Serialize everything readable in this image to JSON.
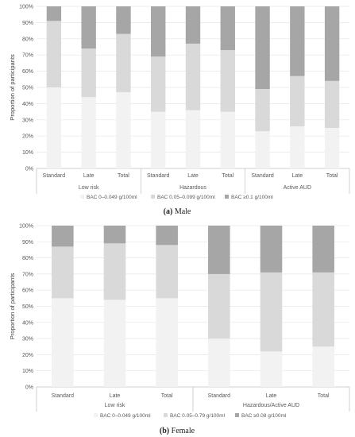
{
  "chart_data": [
    {
      "type": "bar",
      "stacked": true,
      "caption_letter": "(a)",
      "caption_text": "Male",
      "ylabel": "Proportion of participants",
      "ylim": [
        0,
        100
      ],
      "yticks": [
        "0%",
        "10%",
        "20%",
        "30%",
        "40%",
        "50%",
        "60%",
        "70%",
        "80%",
        "90%",
        "100%"
      ],
      "categories": [
        "Standard",
        "Late",
        "Total",
        "Standard",
        "Late",
        "Total",
        "Standard",
        "Late",
        "Total"
      ],
      "groups": [
        {
          "label": "Low risk",
          "count": 3
        },
        {
          "label": "Hazardous",
          "count": 3
        },
        {
          "label": "Active AUD",
          "count": 3
        }
      ],
      "series": [
        {
          "name": "BAC 0–0.049 g/100ml",
          "color": "#f2f2f2",
          "values": [
            50,
            44,
            47,
            35,
            36,
            35,
            23,
            26,
            25
          ]
        },
        {
          "name": "BAC 0.05–0.099 g/100ml",
          "color": "#d9d9d9",
          "values": [
            41,
            30,
            36,
            34,
            41,
            38,
            26,
            31,
            29
          ]
        },
        {
          "name": "BAC ≥0.1 g/100ml",
          "color": "#a6a6a6",
          "values": [
            9,
            26,
            17,
            31,
            23,
            27,
            51,
            43,
            46
          ]
        }
      ]
    },
    {
      "type": "bar",
      "stacked": true,
      "caption_letter": "(b)",
      "caption_text": "Female",
      "ylabel": "Proportion of participants",
      "ylim": [
        0,
        100
      ],
      "yticks": [
        "0%",
        "10%",
        "20%",
        "30%",
        "40%",
        "50%",
        "60%",
        "70%",
        "80%",
        "90%",
        "100%"
      ],
      "categories": [
        "Standard",
        "Late",
        "Total",
        "Standard",
        "Late",
        "Total"
      ],
      "groups": [
        {
          "label": "Low risk",
          "count": 3
        },
        {
          "label": "Hazardous/Active AUD",
          "count": 3
        }
      ],
      "series": [
        {
          "name": "BAC 0–0.049 g/100ml",
          "color": "#f2f2f2",
          "values": [
            55,
            54,
            55,
            30,
            22,
            25
          ]
        },
        {
          "name": "BAC 0.05–0.79 g/100ml",
          "color": "#d9d9d9",
          "values": [
            32,
            35,
            33,
            40,
            49,
            46
          ]
        },
        {
          "name": "BAC ≥0.08 g/100ml",
          "color": "#a6a6a6",
          "values": [
            13,
            11,
            12,
            30,
            29,
            29
          ]
        }
      ]
    }
  ]
}
